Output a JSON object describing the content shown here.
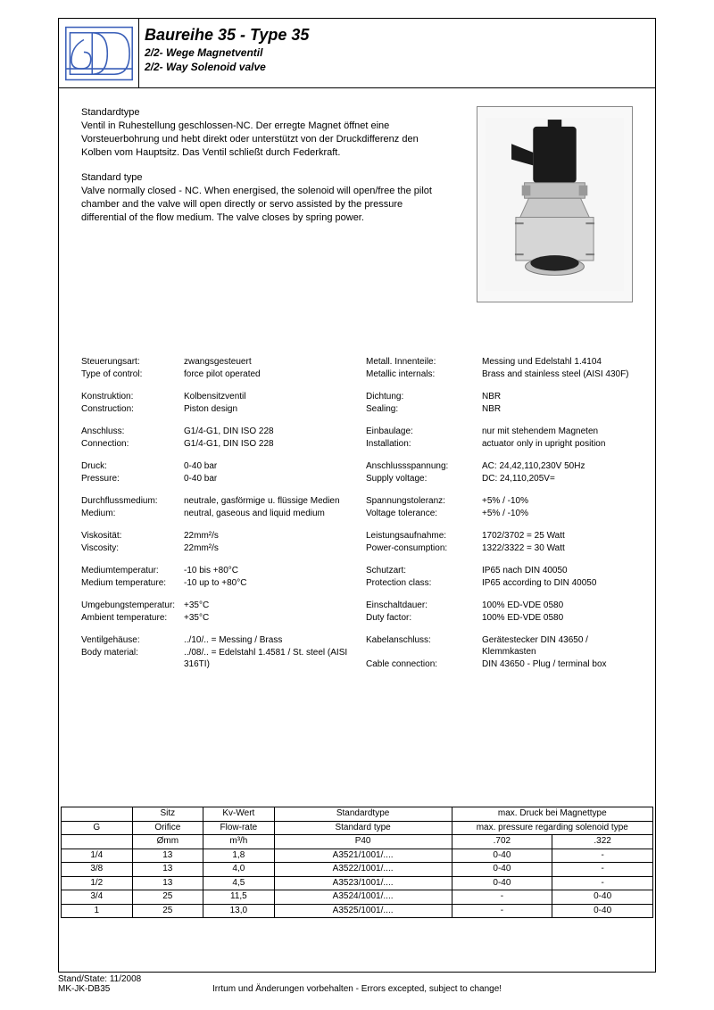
{
  "colors": {
    "logo_stroke": "#3a5fb8",
    "border": "#000000",
    "text": "#000000",
    "img_bg": "#f8f8f8"
  },
  "header": {
    "title": "Baureihe 35 - Type 35",
    "subtitle_de": "2/2- Wege Magnetventil",
    "subtitle_en": "2/2- Way Solenoid valve"
  },
  "intro": {
    "de_title": "Standardtype",
    "de_body": "Ventil in Ruhestellung geschlossen-NC. Der erregte Magnet öffnet eine Vorsteuerbohrung und hebt direkt oder unterstützt von der Druckdifferenz den Kolben vom Hauptsitz. Das Ventil schließt durch Federkraft.",
    "en_title": "Standard type",
    "en_body": "Valve normally closed - NC. When energised, the solenoid will open/free the pilot chamber and the valve will open directly or servo assisted by the pressure differential of the flow medium. The valve closes by spring power."
  },
  "specs_left": [
    {
      "l": "Steuerungsart:",
      "v": "zwangsgesteuert"
    },
    {
      "l": "Type of control:",
      "v": "force pilot operated"
    },
    {
      "gap": true
    },
    {
      "l": "Konstruktion:",
      "v": "Kolbensitzventil"
    },
    {
      "l": "Construction:",
      "v": "Piston design"
    },
    {
      "gap": true
    },
    {
      "l": "Anschluss:",
      "v": "G1/4-G1, DIN ISO 228"
    },
    {
      "l": "Connection:",
      "v": "G1/4-G1, DIN ISO 228"
    },
    {
      "gap": true
    },
    {
      "l": "Druck:",
      "v": "0-40 bar"
    },
    {
      "l": "Pressure:",
      "v": "0-40 bar"
    },
    {
      "gap": true
    },
    {
      "l": "Durchflussmedium:",
      "v": "neutrale, gasförmige u. flüssige Medien"
    },
    {
      "l": "Medium:",
      "v": "neutral, gaseous and liquid medium"
    },
    {
      "gap": true
    },
    {
      "l": "Viskosität:",
      "v": "22mm²/s"
    },
    {
      "l": "Viscosity:",
      "v": "22mm²/s"
    },
    {
      "gap": true
    },
    {
      "l": "Mediumtemperatur:",
      "v": "-10 bis +80°C"
    },
    {
      "l": "Medium temperature:",
      "v": "-10 up to +80°C"
    },
    {
      "gap": true
    },
    {
      "l": "Umgebungstemperatur:",
      "v": "+35°C"
    },
    {
      "l": "Ambient temperature:",
      "v": "+35°C"
    },
    {
      "gap": true
    },
    {
      "l": "Ventilgehäuse:",
      "v": "../10/.. = Messing / Brass"
    },
    {
      "l": "Body material:",
      "v": "../08/.. = Edelstahl 1.4581 / St. steel (AISI 316TI)"
    }
  ],
  "specs_right": [
    {
      "l": "Metall. Innenteile:",
      "v": "Messing und Edelstahl 1.4104"
    },
    {
      "l": "Metallic internals:",
      "v": "Brass and stainless steel (AISI 430F)"
    },
    {
      "gap": true
    },
    {
      "l": "Dichtung:",
      "v": "NBR"
    },
    {
      "l": "Sealing:",
      "v": "NBR"
    },
    {
      "gap": true
    },
    {
      "l": "Einbaulage:",
      "v": "nur mit stehendem Magneten"
    },
    {
      "l": "Installation:",
      "v": "actuator only in upright position"
    },
    {
      "gap": true
    },
    {
      "l": "Anschlussspannung:",
      "v": "AC: 24,42,110,230V 50Hz"
    },
    {
      "l": "Supply voltage:",
      "v": "DC: 24,110,205V="
    },
    {
      "gap": true
    },
    {
      "l": "Spannungstoleranz:",
      "v": "+5% / -10%"
    },
    {
      "l": "Voltage tolerance:",
      "v": "+5% / -10%"
    },
    {
      "gap": true
    },
    {
      "l": "Leistungsaufnahme:",
      "v": "1702/3702 =  25 Watt"
    },
    {
      "l": "Power-consumption:",
      "v": "1322/3322 =  30 Watt"
    },
    {
      "gap": true
    },
    {
      "l": "Schutzart:",
      "v": "IP65 nach DIN 40050"
    },
    {
      "l": "Protection class:",
      "v": "IP65 according to DIN 40050"
    },
    {
      "gap": true
    },
    {
      "l": "Einschaltdauer:",
      "v": "100% ED-VDE 0580"
    },
    {
      "l": "Duty factor:",
      "v": "100% ED-VDE 0580"
    },
    {
      "gap": true
    },
    {
      "l": "Kabelanschluss:",
      "v": "Gerätestecker DIN 43650 / Klemmkasten"
    },
    {
      "l": "Cable connection:",
      "v": "DIN 43650 - Plug / terminal box"
    }
  ],
  "table": {
    "header_rows": [
      [
        "",
        "Sitz",
        "Kv-Wert",
        "Standardtype",
        {
          "cs": 2,
          "t": "max. Druck bei Magnettype"
        }
      ],
      [
        "G",
        "Orifice",
        "Flow-rate",
        "Standard type",
        {
          "cs": 2,
          "t": "max. pressure regarding solenoid type"
        }
      ],
      [
        "",
        "Ømm",
        "m³/h",
        "P40",
        ".702",
        ".322"
      ]
    ],
    "rows": [
      [
        "1/4",
        "13",
        "1,8",
        "A3521/1001/....",
        "0-40",
        "-"
      ],
      [
        "3/8",
        "13",
        "4,0",
        "A3522/1001/....",
        "0-40",
        "-"
      ],
      [
        "1/2",
        "13",
        "4,5",
        "A3523/1001/....",
        "0-40",
        "-"
      ],
      [
        "3/4",
        "25",
        "11,5",
        "A3524/1001/....",
        "-",
        "0-40"
      ],
      [
        "1",
        "25",
        "13,0",
        "A3525/1001/....",
        "-",
        "0-40"
      ]
    ],
    "col_widths": [
      "12%",
      "12%",
      "12%",
      "30%",
      "17%",
      "17%"
    ]
  },
  "footer": {
    "state": "Stand/State: 11/2008",
    "doc": "MK-JK-DB35",
    "disclaimer": "Irrtum und Änderungen vorbehalten - Errors excepted, subject to change!"
  }
}
